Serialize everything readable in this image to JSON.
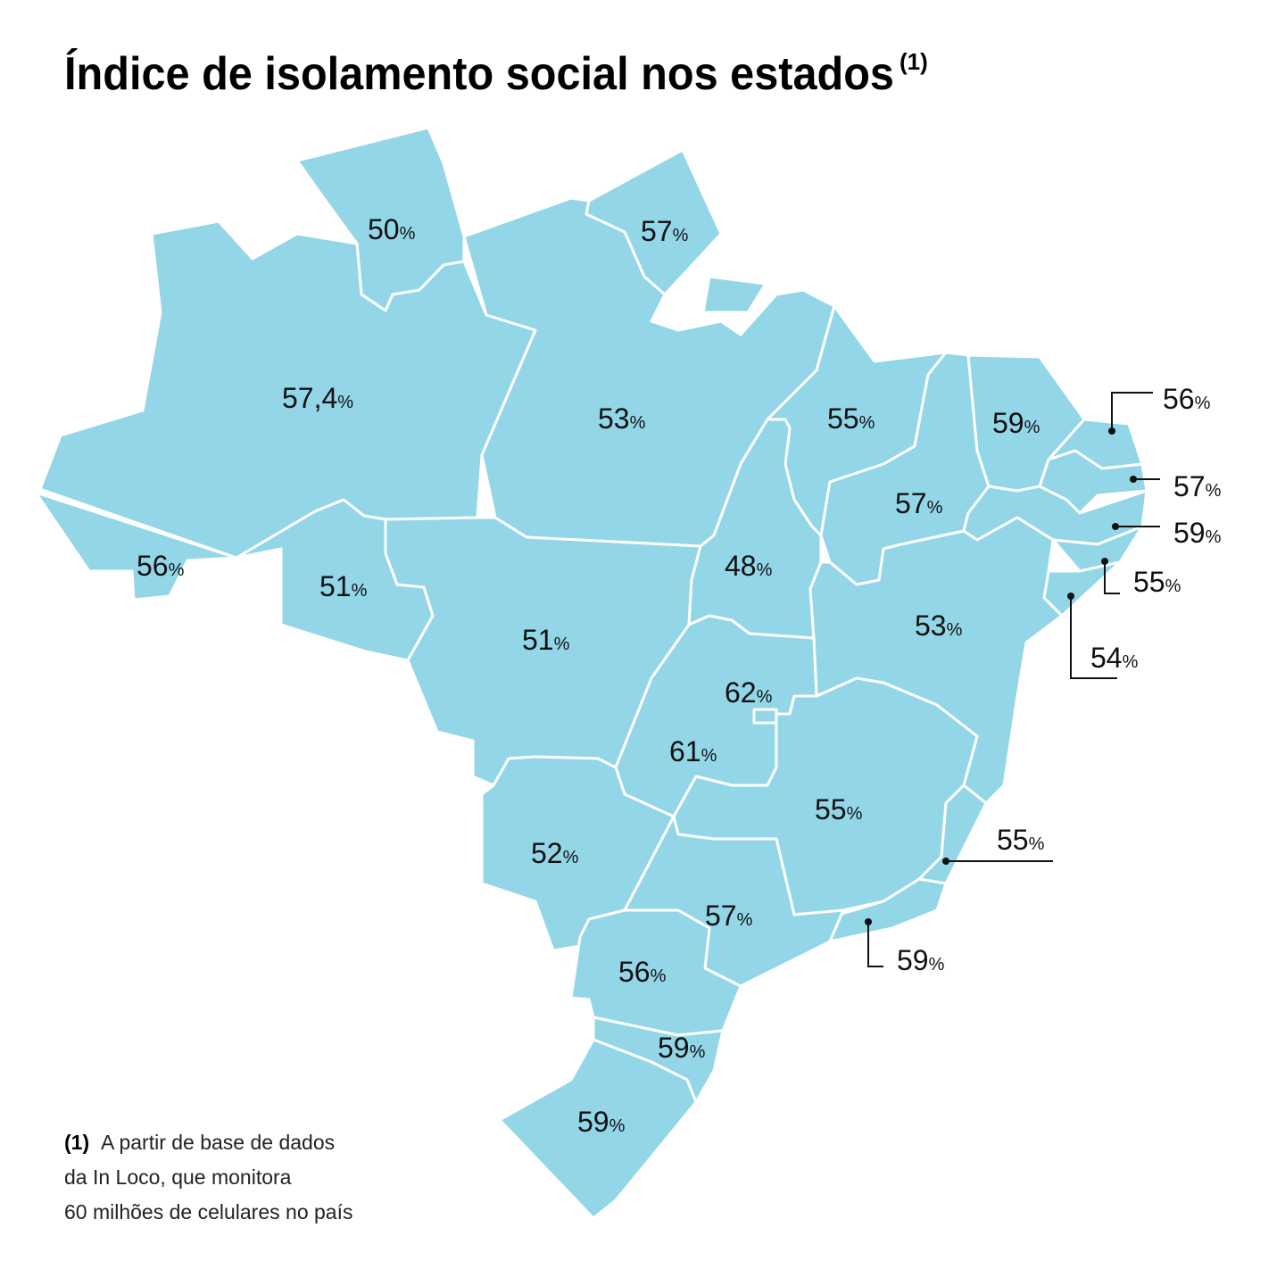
{
  "title": {
    "text": "Índice de isolamento social  nos estados",
    "note_marker": "(1)"
  },
  "labels": [
    {
      "value": "50",
      "unit": "%"
    },
    {
      "value": "57",
      "unit": "%"
    },
    {
      "value": "57,4",
      "unit": "%"
    },
    {
      "value": "56",
      "unit": "%"
    },
    {
      "value": "51",
      "unit": "%"
    },
    {
      "value": "53",
      "unit": "%"
    },
    {
      "value": "51",
      "unit": "%"
    },
    {
      "value": "55",
      "unit": "%"
    },
    {
      "value": "48",
      "unit": "%"
    },
    {
      "value": "57",
      "unit": "%"
    },
    {
      "value": "59",
      "unit": "%"
    },
    {
      "value": "56",
      "unit": "%"
    },
    {
      "value": "57",
      "unit": "%"
    },
    {
      "value": "59",
      "unit": "%"
    },
    {
      "value": "55",
      "unit": "%"
    },
    {
      "value": "54",
      "unit": "%"
    },
    {
      "value": "53",
      "unit": "%"
    },
    {
      "value": "62",
      "unit": "%"
    },
    {
      "value": "61",
      "unit": "%"
    },
    {
      "value": "52",
      "unit": "%"
    },
    {
      "value": "55",
      "unit": "%"
    },
    {
      "value": "55",
      "unit": "%"
    },
    {
      "value": "59",
      "unit": "%"
    },
    {
      "value": "57",
      "unit": "%"
    },
    {
      "value": "56",
      "unit": "%"
    },
    {
      "value": "59",
      "unit": "%"
    },
    {
      "value": "59",
      "unit": "%"
    }
  ],
  "footnote": {
    "marker": "(1)",
    "lines": [
      "A partir de base de dados",
      "da In Loco, que monitora",
      "60 milhões de celulares no país"
    ]
  }
}
